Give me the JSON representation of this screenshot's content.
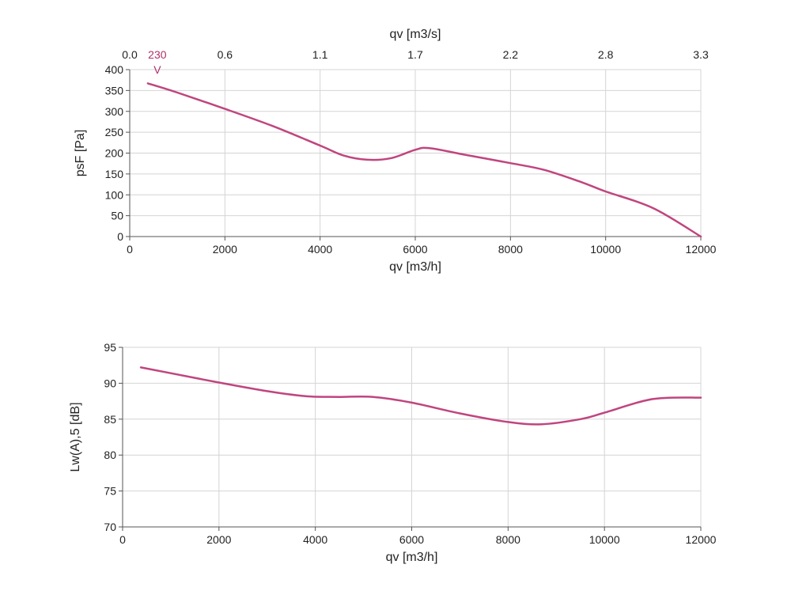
{
  "chart_data": [
    {
      "type": "line",
      "xlabel": "qv [m3/h]",
      "ylabel": "psF [Pa]",
      "x2label": "qv [m3/s]",
      "xlim": [
        0,
        12000
      ],
      "ylim": [
        0,
        400
      ],
      "xticks": [
        0,
        2000,
        4000,
        6000,
        8000,
        10000,
        12000
      ],
      "yticks": [
        0,
        50,
        100,
        150,
        200,
        250,
        300,
        350,
        400
      ],
      "x2ticks": [
        "0.0",
        "0.6",
        "1.1",
        "1.7",
        "2.2",
        "2.8",
        "3.3"
      ],
      "grid": true,
      "curve_label_top": "230",
      "curve_label_bottom": "V",
      "series": [
        {
          "color": "#c0457f",
          "x": [
            380,
            1000,
            2000,
            3000,
            4000,
            4500,
            5000,
            5500,
            6000,
            6300,
            7000,
            8000,
            8700,
            9500,
            10000,
            11000,
            12000
          ],
          "y": [
            367,
            345,
            306,
            265,
            218,
            194,
            184,
            188,
            208,
            212,
            197,
            176,
            160,
            130,
            108,
            68,
            0
          ]
        }
      ]
    },
    {
      "type": "line",
      "xlabel": "qv [m3/h]",
      "ylabel": "Lw(A),5 [dB]",
      "xlim": [
        0,
        12000
      ],
      "ylim": [
        70,
        95
      ],
      "xticks": [
        0,
        2000,
        4000,
        6000,
        8000,
        10000,
        12000
      ],
      "yticks": [
        70,
        75,
        80,
        85,
        90,
        95
      ],
      "grid": true,
      "series": [
        {
          "color": "#c0457f",
          "x": [
            380,
            1000,
            2000,
            3000,
            3800,
            4500,
            5200,
            6000,
            7000,
            8000,
            8700,
            9500,
            10000,
            11000,
            12000
          ],
          "y": [
            92.2,
            91.4,
            90.1,
            88.9,
            88.2,
            88.1,
            88.1,
            87.3,
            85.8,
            84.6,
            84.3,
            85.0,
            85.9,
            87.8,
            88.0
          ]
        }
      ]
    }
  ]
}
